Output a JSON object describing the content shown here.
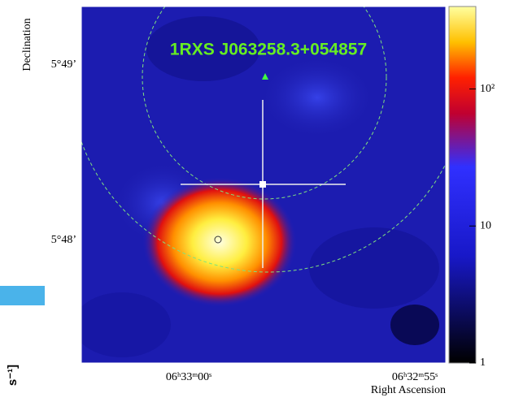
{
  "figure": {
    "source_label": "1RXS J063258.3+054857",
    "x_axis": {
      "label": "Right Ascension",
      "ticks": [
        "06ʰ33ᵐ00ˢ",
        "06ʰ32ᵐ55ˢ"
      ]
    },
    "y_axis": {
      "label": "Declination",
      "ticks": [
        "5°49’",
        "5°48’"
      ]
    },
    "colorbar": {
      "log": true,
      "lim": [
        1,
        400
      ],
      "ticks": [
        1,
        10,
        {
          "value": 100,
          "label": "10²"
        }
      ]
    },
    "side_fragment": "s⁻¹]"
  }
}
